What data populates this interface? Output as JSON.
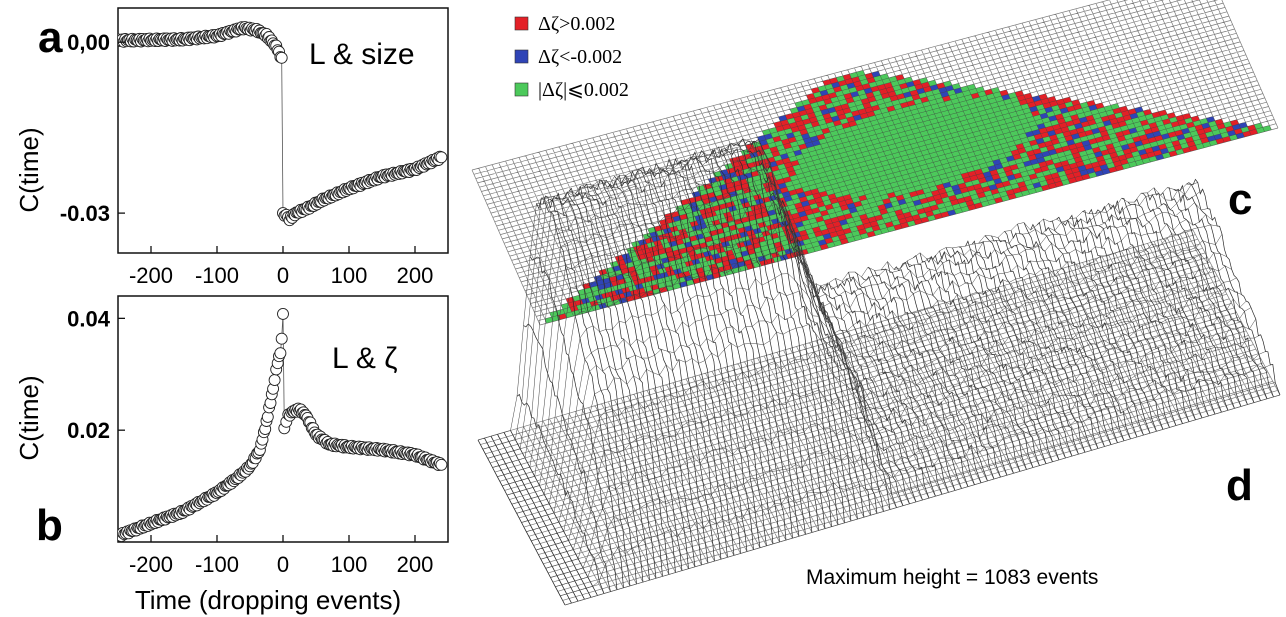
{
  "panels": {
    "a": {
      "label": "a",
      "annotation": "L & size"
    },
    "b": {
      "label": "b",
      "annotation": "L & ζ"
    },
    "c": {
      "label": "c"
    },
    "d": {
      "label": "d",
      "caption": "Maximum height = 1083  events"
    }
  },
  "legend": [
    {
      "label": "Δζ>0.002",
      "color": "#e32027"
    },
    {
      "label": "Δζ<-0.002",
      "color": "#2f44b6"
    },
    {
      "label": "|Δζ|⩽0.002",
      "color": "#4cc95b"
    }
  ],
  "colors": {
    "mesh_line": "#7a7a7a",
    "marker_edge": "#222222"
  },
  "chart_data": [
    {
      "type": "scatter",
      "panel": "a",
      "xlabel": "",
      "ylabel": "C(time)",
      "xlim": [
        -250,
        250
      ],
      "ylim": [
        -0.037,
        0.006
      ],
      "xticks": [
        -200,
        -100,
        0,
        100,
        200
      ],
      "yticks": [
        0.0,
        -0.03
      ],
      "ytick_labels": [
        "0,00",
        "-0.03"
      ],
      "x": [
        -250,
        -200,
        -150,
        -100,
        -60,
        -40,
        -25,
        -15,
        -8,
        -4,
        -2,
        0,
        5,
        10,
        20,
        40,
        60,
        100,
        150,
        200,
        240
      ],
      "y": [
        0.0003,
        0.0004,
        0.0005,
        0.0011,
        0.0025,
        0.0021,
        0.0012,
        -0.0001,
        -0.0012,
        -0.0025,
        -0.0028,
        -0.03,
        -0.0305,
        -0.031,
        -0.03,
        -0.029,
        -0.0277,
        -0.0257,
        -0.0236,
        -0.0223,
        -0.0202
      ]
    },
    {
      "type": "scatter",
      "panel": "b",
      "xlabel": "Time (dropping events)",
      "ylabel": "C(time)",
      "xlim": [
        -250,
        250
      ],
      "ylim": [
        0.0,
        0.044
      ],
      "xticks": [
        -200,
        -100,
        0,
        100,
        200
      ],
      "yticks": [
        0.02,
        0.04
      ],
      "ytick_labels": [
        "0.02",
        "0.04"
      ],
      "x": [
        -245,
        -200,
        -150,
        -100,
        -70,
        -50,
        -35,
        -25,
        -15,
        -8,
        -4,
        -2,
        0,
        2,
        5,
        8,
        15,
        25,
        35,
        50,
        70,
        100,
        150,
        200,
        240
      ],
      "y": [
        0.0013,
        0.0033,
        0.0055,
        0.0088,
        0.0114,
        0.0135,
        0.0165,
        0.0214,
        0.0275,
        0.0322,
        0.0339,
        0.0363,
        0.0408,
        0.0204,
        0.0213,
        0.0226,
        0.0233,
        0.0237,
        0.0226,
        0.0192,
        0.0175,
        0.017,
        0.0165,
        0.0156,
        0.0138
      ]
    }
  ]
}
